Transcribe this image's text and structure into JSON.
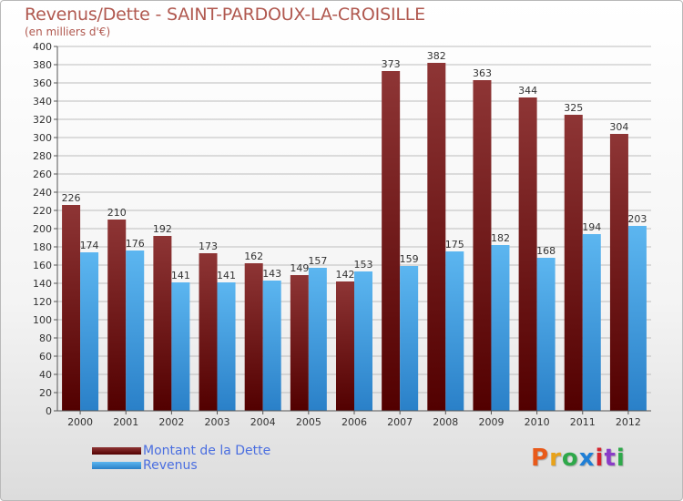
{
  "title": "Revenus/Dette - SAINT-PARDOUX-LA-CROISILLE",
  "subtitle": "(en milliers d'€)",
  "logo": "Proxiti",
  "chart_data": {
    "type": "bar",
    "categories": [
      "2000",
      "2001",
      "2002",
      "2003",
      "2004",
      "2005",
      "2006",
      "2007",
      "2008",
      "2009",
      "2010",
      "2011",
      "2012"
    ],
    "series": [
      {
        "name": "Montant de la Dette",
        "values": [
          226,
          210,
          192,
          173,
          162,
          149,
          142,
          373,
          382,
          363,
          344,
          325,
          304
        ],
        "color": "#7a1c1c"
      },
      {
        "name": "Revenus",
        "values": [
          174,
          176,
          141,
          141,
          143,
          157,
          153,
          159,
          175,
          182,
          168,
          194,
          203
        ],
        "color": "#3f9be0"
      }
    ],
    "ylim": [
      0,
      400
    ],
    "ytick_step": 20,
    "grid": true,
    "legend_position": "bottom-left"
  },
  "colors": {
    "title": "#b0584f",
    "legend_text": "#4a6ee0",
    "grid": "#bdbdbd",
    "axis": "#555555",
    "logo_letters": [
      "#e85a1a",
      "#e8a21a",
      "#2ea84a",
      "#1f7fd6",
      "#d6242e",
      "#8a3cc7",
      "#2ea84a"
    ]
  }
}
